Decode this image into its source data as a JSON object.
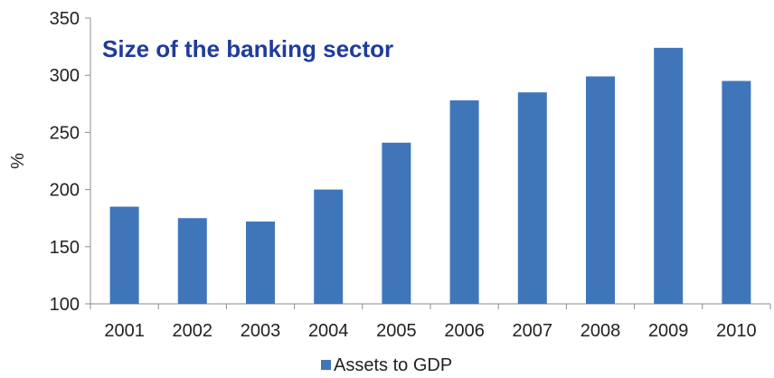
{
  "chart_data": {
    "type": "bar",
    "title": "Size of the banking sector",
    "ylabel": "%",
    "xlabel": "",
    "categories": [
      "2001",
      "2002",
      "2003",
      "2004",
      "2005",
      "2006",
      "2007",
      "2008",
      "2009",
      "2010"
    ],
    "series": [
      {
        "name": "Assets to GDP",
        "values": [
          185,
          175,
          172,
          200,
          241,
          278,
          285,
          299,
          324,
          295
        ],
        "color": "#3F76B9"
      }
    ],
    "ylim": [
      100,
      350
    ],
    "yticks": [
      100,
      150,
      200,
      250,
      300,
      350
    ],
    "grid": false,
    "legend": "bottom-center",
    "title_color": "#1F3C99"
  }
}
